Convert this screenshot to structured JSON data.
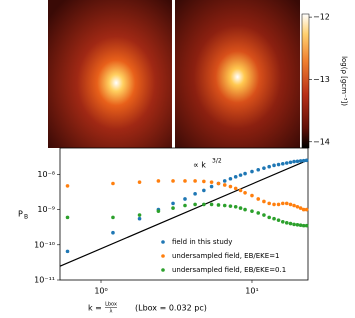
{
  "chart_data": [
    {
      "type": "image",
      "colorbar": {
        "label": "log(ρ [gcm⁻³])",
        "ylim": [
          -14.1,
          -11.95
        ],
        "yticks": [
          {
            "value": -12,
            "label": "−12"
          },
          {
            "value": -13,
            "label": "−13"
          },
          {
            "value": -14,
            "label": "−14"
          }
        ]
      }
    },
    {
      "type": "scatter",
      "log_x": true,
      "log_y": true,
      "ylabel": {
        "main": "P",
        "sub": "B"
      },
      "xlabel": {
        "lhs": "k =",
        "numerator": "Lbox",
        "denominator": "λ",
        "note": "(Lbox =  0.032 pc)"
      },
      "annotation": {
        "text": "∝ k",
        "exponent": "3/2"
      },
      "xlim": [
        0.535,
        23.5
      ],
      "ylim": [
        1e-11,
        5.6e-08
      ],
      "xticks": [
        {
          "value": 1,
          "label": "10⁰"
        },
        {
          "value": 10,
          "label": "10¹"
        }
      ],
      "yticks": [
        {
          "value": 1e-11,
          "label": "10⁻¹¹"
        },
        {
          "value": 1e-10,
          "label": "10⁻¹⁰"
        },
        {
          "value": 1e-09,
          "label": "10⁻⁹"
        },
        {
          "value": 1e-08,
          "label": "10⁻⁸"
        }
      ],
      "legend": "lower right",
      "x": [
        0.6,
        1.2,
        1.8,
        2.4,
        3.0,
        3.6,
        4.2,
        4.8,
        5.4,
        6.0,
        6.6,
        7.2,
        7.8,
        8.4,
        9.0,
        10,
        11,
        12,
        13,
        14,
        15,
        16,
        17,
        18,
        19,
        20,
        21,
        22,
        23
      ],
      "series": [
        {
          "name": "field in this study",
          "color": "#1f77b4",
          "values": [
            6.5e-11,
            2.2e-10,
            5.5e-10,
            1e-09,
            1.5e-09,
            2e-09,
            2.8e-09,
            3.5e-09,
            4.5e-09,
            5.5e-09,
            6.5e-09,
            7.5e-09,
            8.5e-09,
            9.5e-09,
            1.05e-08,
            1.2e-08,
            1.35e-08,
            1.5e-08,
            1.65e-08,
            1.8e-08,
            1.9e-08,
            2e-08,
            2.1e-08,
            2.2e-08,
            2.3e-08,
            2.35e-08,
            2.4e-08,
            2.45e-08,
            2.5e-08
          ]
        },
        {
          "name": "undersampled field, EB/EKE=1",
          "color": "#ff7f0e",
          "values": [
            4.7e-09,
            5.5e-09,
            6e-09,
            6.5e-09,
            6.5e-09,
            6.5e-09,
            6.5e-09,
            6.3e-09,
            6e-09,
            5.5e-09,
            5e-09,
            4.5e-09,
            4e-09,
            3.5e-09,
            3e-09,
            2.5e-09,
            2e-09,
            1.7e-09,
            1.5e-09,
            1.4e-09,
            1.4e-09,
            1.5e-09,
            1.5e-09,
            1.4e-09,
            1.3e-09,
            1.2e-09,
            1.1e-09,
            1e-09,
            1e-09
          ]
        },
        {
          "name": "undersampled field, EB/EKE=0.1",
          "color": "#2ca02c",
          "values": [
            6e-10,
            6e-10,
            7e-10,
            9e-10,
            1.1e-09,
            1.3e-09,
            1.4e-09,
            1.4e-09,
            1.4e-09,
            1.35e-09,
            1.3e-09,
            1.25e-09,
            1.2e-09,
            1.1e-09,
            1e-09,
            9e-10,
            8e-10,
            7e-10,
            6e-10,
            5.5e-10,
            5e-10,
            4.5e-10,
            4.2e-10,
            4e-10,
            3.8e-10,
            3.7e-10,
            3.6e-10,
            3.5e-10,
            3.5e-10
          ]
        }
      ],
      "fit_line": {
        "color": "#000000",
        "x": [
          0.535,
          23.5
        ],
        "values": [
          2.46e-11,
          2.55e-08
        ]
      }
    }
  ]
}
